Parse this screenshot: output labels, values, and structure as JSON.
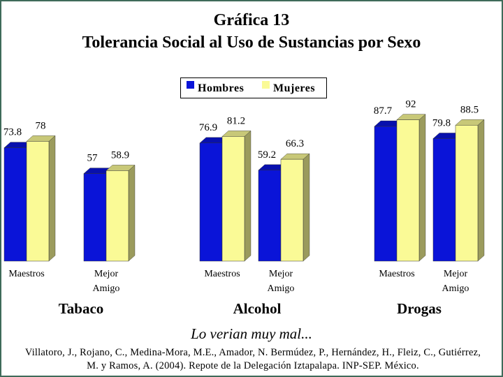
{
  "title_line1": "Gráfica 13",
  "title_line2": "Tolerancia Social al Uso de Sustancias por Sexo",
  "subtitle": "Lo verian muy mal...",
  "source": "Villatoro, J., Rojano, C., Medina-Mora, M.E., Amador, N. Bermúdez, P., Hernández, H., Fleiz, C., Gutiérrez, M. y Ramos, A. (2004). Repote de la Delegación Iztapalapa. INP-SEP. México.",
  "colors": {
    "hombres": "#0a14d8",
    "mujeres": "#fafa96",
    "frame": "#3f6b5a"
  },
  "chart_data": {
    "type": "bar",
    "groups": [
      "Tabaco",
      "Alcohol",
      "Drogas"
    ],
    "categories": [
      "Maestros",
      "Mejor Amigo",
      "Maestros",
      "Mejor Amigo",
      "Maestros",
      "Mejor Amigo"
    ],
    "category_lines": [
      [
        "Maestros"
      ],
      [
        "Mejor",
        "Amigo"
      ],
      [
        "Maestros"
      ],
      [
        "Mejor",
        "Amigo"
      ],
      [
        "Maestros"
      ],
      [
        "Mejor",
        "Amigo"
      ]
    ],
    "series": [
      {
        "name": "Hombres",
        "values": [
          73.8,
          57,
          76.9,
          59.2,
          87.7,
          79.8
        ]
      },
      {
        "name": "Mujeres",
        "values": [
          78,
          58.9,
          81.2,
          66.3,
          92,
          88.5
        ]
      }
    ],
    "value_labels": {
      "Hombres": [
        "73.8",
        "57",
        "76.9",
        "59.2",
        "87.7",
        "79.8"
      ],
      "Mujeres": [
        "78",
        "58.9",
        "81.2",
        "66.3",
        "92",
        "88.5"
      ]
    },
    "ylim": [
      0,
      100
    ],
    "grid": false,
    "legend_position": "top-center"
  }
}
